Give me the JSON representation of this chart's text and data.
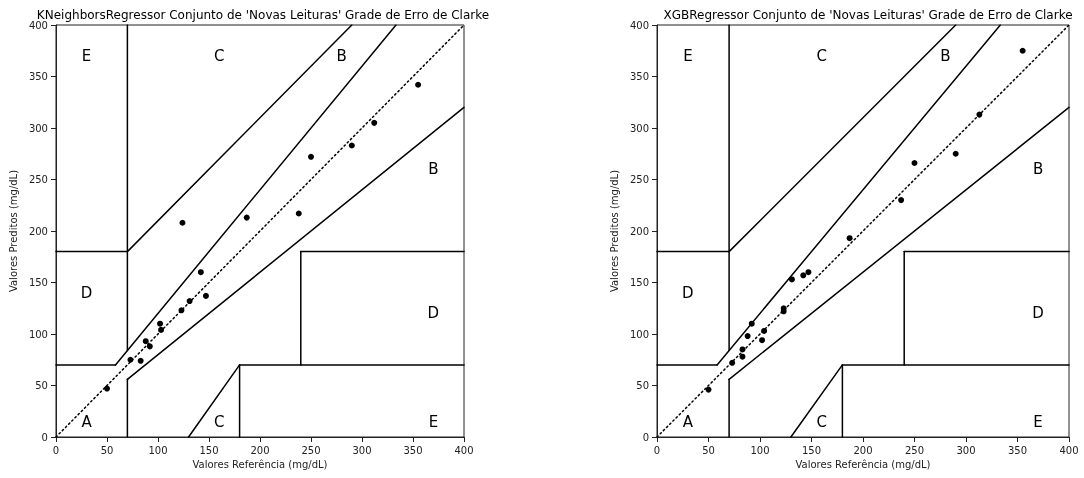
{
  "chart_data": [
    {
      "type": "scatter",
      "title": "KNeighborsRegressor Conjunto de 'Novas Leituras' Grade de Erro de Clarke",
      "xlabel": "Valores Referência (mg/dL)",
      "ylabel": "Valores Preditos (mg/dL)",
      "xlim": [
        0,
        400
      ],
      "ylim": [
        0,
        400
      ],
      "xticks": [
        0,
        50,
        100,
        150,
        200,
        250,
        300,
        350,
        400
      ],
      "yticks": [
        0,
        50,
        100,
        150,
        200,
        250,
        300,
        350,
        400
      ],
      "grid": false,
      "annotations": [
        "A",
        "B",
        "B",
        "C",
        "C",
        "D",
        "D",
        "E",
        "E"
      ],
      "series": [
        {
          "type": "scatter",
          "color": "#000000",
          "marker": "circle",
          "x": [
            50,
            73,
            83,
            88,
            92,
            102,
            103,
            123,
            131,
            142,
            147,
            124,
            187,
            238,
            250,
            290,
            312,
            355
          ],
          "values": [
            47,
            75,
            74,
            93,
            88,
            110,
            104,
            123,
            132,
            160,
            137,
            208,
            213,
            217,
            272,
            283,
            305,
            342
          ]
        },
        {
          "type": "line",
          "color": "#000000",
          "marker": "none",
          "line_style": "dotted",
          "x": [
            0,
            400
          ],
          "values": [
            0,
            400
          ]
        },
        {
          "type": "line",
          "color": "#000000",
          "marker": "none",
          "line_style": "solid",
          "x": [
            0,
            58.33
          ],
          "values": [
            70,
            70
          ]
        },
        {
          "type": "line",
          "color": "#000000",
          "marker": "none",
          "line_style": "solid",
          "x": [
            58.33,
            333.33
          ],
          "values": [
            70,
            400
          ]
        },
        {
          "type": "line",
          "color": "#000000",
          "marker": "none",
          "line_style": "solid",
          "x": [
            70,
            70
          ],
          "values": [
            84,
            400
          ]
        },
        {
          "type": "line",
          "color": "#000000",
          "marker": "none",
          "line_style": "solid",
          "x": [
            0,
            70
          ],
          "values": [
            180,
            180
          ]
        },
        {
          "type": "line",
          "color": "#000000",
          "marker": "none",
          "line_style": "solid",
          "x": [
            70,
            290
          ],
          "values": [
            180,
            400
          ]
        },
        {
          "type": "line",
          "color": "#000000",
          "marker": "none",
          "line_style": "solid",
          "x": [
            70,
            70
          ],
          "values": [
            0,
            56
          ]
        },
        {
          "type": "line",
          "color": "#000000",
          "marker": "none",
          "line_style": "solid",
          "x": [
            70,
            400
          ],
          "values": [
            56,
            320
          ]
        },
        {
          "type": "line",
          "color": "#000000",
          "marker": "none",
          "line_style": "solid",
          "x": [
            180,
            180
          ],
          "values": [
            0,
            70
          ]
        },
        {
          "type": "line",
          "color": "#000000",
          "marker": "none",
          "line_style": "solid",
          "x": [
            180,
            400
          ],
          "values": [
            70,
            70
          ]
        },
        {
          "type": "line",
          "color": "#000000",
          "marker": "none",
          "line_style": "solid",
          "x": [
            240,
            240
          ],
          "values": [
            70,
            180
          ]
        },
        {
          "type": "line",
          "color": "#000000",
          "marker": "none",
          "line_style": "solid",
          "x": [
            240,
            400
          ],
          "values": [
            180,
            180
          ]
        },
        {
          "type": "line",
          "color": "#000000",
          "marker": "none",
          "line_style": "solid",
          "x": [
            130,
            180
          ],
          "values": [
            0,
            70
          ]
        }
      ]
    },
    {
      "type": "scatter",
      "title": "XGBRegressor Conjunto de 'Novas Leituras' Grade de Erro de Clarke",
      "xlabel": "Valores Referência (mg/dL)",
      "ylabel": "Valores Preditos (mg/dL)",
      "xlim": [
        0,
        400
      ],
      "ylim": [
        0,
        400
      ],
      "xticks": [
        0,
        50,
        100,
        150,
        200,
        250,
        300,
        350,
        400
      ],
      "yticks": [
        0,
        50,
        100,
        150,
        200,
        250,
        300,
        350,
        400
      ],
      "grid": false,
      "annotations": [
        "A",
        "B",
        "B",
        "C",
        "C",
        "D",
        "D",
        "E",
        "E"
      ],
      "series": [
        {
          "type": "scatter",
          "color": "#000000",
          "marker": "circle",
          "x": [
            50,
            73,
            83,
            83,
            88,
            92,
            102,
            104,
            123,
            123,
            131,
            142,
            147,
            187,
            237,
            250,
            290,
            313,
            355
          ],
          "values": [
            46,
            72,
            78,
            85,
            98,
            110,
            94,
            103,
            122,
            125,
            153,
            157,
            160,
            193,
            230,
            266,
            275,
            313,
            375
          ]
        },
        {
          "type": "line",
          "color": "#000000",
          "marker": "none",
          "line_style": "dotted",
          "x": [
            0,
            400
          ],
          "values": [
            0,
            400
          ]
        },
        {
          "type": "line",
          "color": "#000000",
          "marker": "none",
          "line_style": "solid",
          "x": [
            0,
            58.33
          ],
          "values": [
            70,
            70
          ]
        },
        {
          "type": "line",
          "color": "#000000",
          "marker": "none",
          "line_style": "solid",
          "x": [
            58.33,
            333.33
          ],
          "values": [
            70,
            400
          ]
        },
        {
          "type": "line",
          "color": "#000000",
          "marker": "none",
          "line_style": "solid",
          "x": [
            70,
            70
          ],
          "values": [
            84,
            400
          ]
        },
        {
          "type": "line",
          "color": "#000000",
          "marker": "none",
          "line_style": "solid",
          "x": [
            0,
            70
          ],
          "values": [
            180,
            180
          ]
        },
        {
          "type": "line",
          "color": "#000000",
          "marker": "none",
          "line_style": "solid",
          "x": [
            70,
            290
          ],
          "values": [
            180,
            400
          ]
        },
        {
          "type": "line",
          "color": "#000000",
          "marker": "none",
          "line_style": "solid",
          "x": [
            70,
            70
          ],
          "values": [
            0,
            56
          ]
        },
        {
          "type": "line",
          "color": "#000000",
          "marker": "none",
          "line_style": "solid",
          "x": [
            70,
            400
          ],
          "values": [
            56,
            320
          ]
        },
        {
          "type": "line",
          "color": "#000000",
          "marker": "none",
          "line_style": "solid",
          "x": [
            180,
            180
          ],
          "values": [
            0,
            70
          ]
        },
        {
          "type": "line",
          "color": "#000000",
          "marker": "none",
          "line_style": "solid",
          "x": [
            180,
            400
          ],
          "values": [
            70,
            70
          ]
        },
        {
          "type": "line",
          "color": "#000000",
          "marker": "none",
          "line_style": "solid",
          "x": [
            240,
            240
          ],
          "values": [
            70,
            180
          ]
        },
        {
          "type": "line",
          "color": "#000000",
          "marker": "none",
          "line_style": "solid",
          "x": [
            240,
            400
          ],
          "values": [
            180,
            180
          ]
        },
        {
          "type": "line",
          "color": "#000000",
          "marker": "none",
          "line_style": "solid",
          "x": [
            130,
            180
          ],
          "values": [
            0,
            70
          ]
        }
      ]
    }
  ]
}
